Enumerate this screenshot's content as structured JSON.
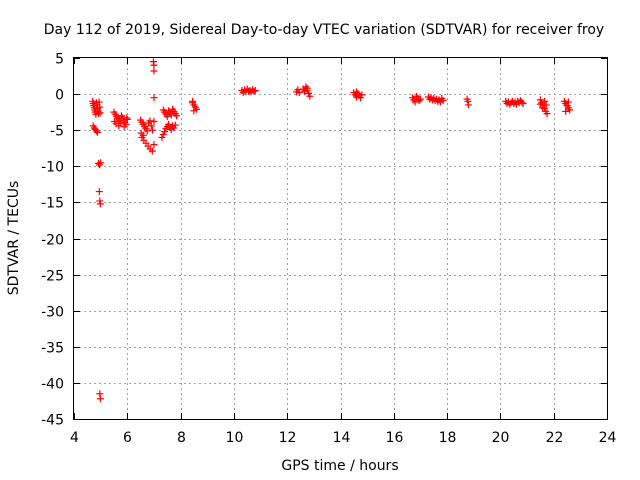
{
  "chart_data": {
    "type": "scatter",
    "title": "Day 112 of 2019, Sidereal Day-to-day VTEC variation (SDTVAR) for receiver froy",
    "xlabel": "GPS time / hours",
    "ylabel": "SDTVAR / TECUs",
    "xlim": [
      4,
      24
    ],
    "ylim": [
      -45,
      5
    ],
    "xticks": [
      "4",
      "6",
      "8",
      "10",
      "12",
      "14",
      "16",
      "18",
      "20",
      "22",
      "24"
    ],
    "yticks": [
      "5",
      "0",
      "-5",
      "-10",
      "-15",
      "-20",
      "-25",
      "-30",
      "-35",
      "-40",
      "-45"
    ],
    "xtick_values": [
      4,
      6,
      8,
      10,
      12,
      14,
      16,
      18,
      20,
      22,
      24
    ],
    "ytick_values": [
      5,
      0,
      -5,
      -10,
      -15,
      -20,
      -25,
      -30,
      -35,
      -40,
      -45
    ],
    "grid": true,
    "marker": "plus",
    "series": [
      {
        "name": "SDTVAR",
        "color": "#ff0000",
        "points": [
          [
            4.7,
            -1.0
          ],
          [
            4.72,
            -1.3
          ],
          [
            4.74,
            -1.6
          ],
          [
            4.76,
            -1.9
          ],
          [
            4.78,
            -2.2
          ],
          [
            4.8,
            -2.5
          ],
          [
            4.82,
            -2.8
          ],
          [
            4.84,
            -1.2
          ],
          [
            4.86,
            -1.5
          ],
          [
            4.88,
            -2.0
          ],
          [
            4.9,
            -2.4
          ],
          [
            4.92,
            -2.7
          ],
          [
            4.94,
            -1.1
          ],
          [
            4.96,
            -1.8
          ],
          [
            4.98,
            -2.6
          ],
          [
            4.72,
            -4.4
          ],
          [
            4.76,
            -4.7
          ],
          [
            4.8,
            -4.9
          ],
          [
            4.84,
            -5.1
          ],
          [
            4.88,
            -5.3
          ],
          [
            4.92,
            -9.6
          ],
          [
            4.96,
            -9.8
          ],
          [
            5.0,
            -9.5
          ],
          [
            4.95,
            -13.5
          ],
          [
            4.97,
            -14.8
          ],
          [
            4.99,
            -15.2
          ],
          [
            4.97,
            -41.5
          ],
          [
            4.99,
            -42.2
          ],
          [
            5.5,
            -2.5
          ],
          [
            5.55,
            -2.8
          ],
          [
            5.6,
            -3.1
          ],
          [
            5.65,
            -3.4
          ],
          [
            5.7,
            -3.7
          ],
          [
            5.75,
            -4.0
          ],
          [
            5.8,
            -3.2
          ],
          [
            5.85,
            -3.6
          ],
          [
            5.9,
            -3.9
          ],
          [
            5.95,
            -4.2
          ],
          [
            6.0,
            -3.5
          ],
          [
            5.52,
            -3.8
          ],
          [
            5.58,
            -4.1
          ],
          [
            5.68,
            -4.4
          ],
          [
            5.78,
            -3.0
          ],
          [
            5.88,
            -4.5
          ],
          [
            5.98,
            -3.3
          ],
          [
            6.5,
            -3.6
          ],
          [
            6.55,
            -3.9
          ],
          [
            6.6,
            -4.2
          ],
          [
            6.65,
            -4.5
          ],
          [
            6.7,
            -4.8
          ],
          [
            6.75,
            -5.1
          ],
          [
            6.8,
            -4.0
          ],
          [
            6.85,
            -3.7
          ],
          [
            6.9,
            -4.4
          ],
          [
            6.95,
            -5.0
          ],
          [
            7.0,
            -3.8
          ],
          [
            6.52,
            -5.4
          ],
          [
            6.6,
            -5.7
          ],
          [
            6.55,
            -6.0
          ],
          [
            6.62,
            -6.4
          ],
          [
            6.7,
            -6.8
          ],
          [
            6.78,
            -7.2
          ],
          [
            6.86,
            -7.6
          ],
          [
            6.94,
            -7.9
          ],
          [
            7.0,
            -7.0
          ],
          [
            6.98,
            4.5
          ],
          [
            7.0,
            4.0
          ],
          [
            7.0,
            3.2
          ],
          [
            7.0,
            -0.5
          ],
          [
            7.3,
            -6.0
          ],
          [
            7.35,
            -5.6
          ],
          [
            7.4,
            -5.2
          ],
          [
            7.45,
            -4.8
          ],
          [
            7.5,
            -4.5
          ],
          [
            7.55,
            -4.2
          ],
          [
            7.6,
            -4.6
          ],
          [
            7.65,
            -4.9
          ],
          [
            7.7,
            -4.4
          ],
          [
            7.75,
            -4.7
          ],
          [
            7.8,
            -4.3
          ],
          [
            7.35,
            -2.2
          ],
          [
            7.4,
            -2.5
          ],
          [
            7.45,
            -2.8
          ],
          [
            7.5,
            -3.1
          ],
          [
            7.55,
            -2.3
          ],
          [
            7.6,
            -2.6
          ],
          [
            7.65,
            -2.9
          ],
          [
            7.7,
            -2.1
          ],
          [
            7.75,
            -2.4
          ],
          [
            7.8,
            -2.7
          ],
          [
            7.85,
            -3.0
          ],
          [
            8.45,
            -1.2
          ],
          [
            8.5,
            -1.5
          ],
          [
            8.55,
            -1.8
          ],
          [
            8.6,
            -2.1
          ],
          [
            8.5,
            -2.3
          ],
          [
            8.45,
            -1.0
          ],
          [
            10.3,
            0.5
          ],
          [
            10.35,
            0.2
          ],
          [
            10.4,
            0.6
          ],
          [
            10.45,
            0.3
          ],
          [
            10.5,
            0.7
          ],
          [
            10.55,
            0.4
          ],
          [
            10.6,
            0.5
          ],
          [
            10.65,
            0.3
          ],
          [
            10.7,
            0.6
          ],
          [
            10.75,
            0.4
          ],
          [
            10.8,
            0.5
          ],
          [
            12.35,
            0.3
          ],
          [
            12.4,
            0.6
          ],
          [
            12.45,
            0.2
          ],
          [
            12.6,
            0.7
          ],
          [
            12.65,
            0.4
          ],
          [
            12.7,
            1.0
          ],
          [
            12.75,
            0.5
          ],
          [
            12.8,
            0.1
          ],
          [
            12.85,
            -0.3
          ],
          [
            12.75,
            0.8
          ],
          [
            14.5,
            0.2
          ],
          [
            14.55,
            -0.1
          ],
          [
            14.6,
            -0.4
          ],
          [
            14.65,
            0.1
          ],
          [
            14.7,
            -0.2
          ],
          [
            14.75,
            -0.5
          ],
          [
            14.8,
            -0.1
          ],
          [
            14.6,
            0.3
          ],
          [
            16.7,
            -0.5
          ],
          [
            16.75,
            -0.8
          ],
          [
            16.8,
            -1.1
          ],
          [
            16.85,
            -0.3
          ],
          [
            16.9,
            -0.6
          ],
          [
            16.95,
            -0.9
          ],
          [
            17.0,
            -0.7
          ],
          [
            17.3,
            -0.4
          ],
          [
            17.35,
            -0.7
          ],
          [
            17.4,
            -0.5
          ],
          [
            17.45,
            -0.8
          ],
          [
            17.5,
            -0.6
          ],
          [
            17.55,
            -0.9
          ],
          [
            17.6,
            -0.7
          ],
          [
            17.65,
            -1.0
          ],
          [
            17.7,
            -0.8
          ],
          [
            17.75,
            -1.1
          ],
          [
            17.8,
            -0.6
          ],
          [
            17.85,
            -0.9
          ],
          [
            18.75,
            -0.7
          ],
          [
            18.78,
            -1.0
          ],
          [
            18.8,
            -1.5
          ],
          [
            20.2,
            -1.0
          ],
          [
            20.25,
            -1.3
          ],
          [
            20.3,
            -1.1
          ],
          [
            20.35,
            -1.4
          ],
          [
            20.4,
            -1.2
          ],
          [
            20.45,
            -1.0
          ],
          [
            20.5,
            -1.3
          ],
          [
            20.55,
            -1.1
          ],
          [
            20.6,
            -1.4
          ],
          [
            20.65,
            -1.0
          ],
          [
            20.7,
            -1.2
          ],
          [
            20.75,
            -0.9
          ],
          [
            20.8,
            -1.1
          ],
          [
            20.85,
            -1.3
          ],
          [
            21.5,
            -0.8
          ],
          [
            21.55,
            -1.2
          ],
          [
            21.6,
            -1.6
          ],
          [
            21.65,
            -2.0
          ],
          [
            21.7,
            -2.4
          ],
          [
            21.75,
            -2.7
          ],
          [
            21.5,
            -1.4
          ],
          [
            21.58,
            -1.9
          ],
          [
            21.66,
            -1.0
          ],
          [
            21.72,
            -1.5
          ],
          [
            22.4,
            -1.0
          ],
          [
            22.45,
            -1.3
          ],
          [
            22.5,
            -1.6
          ],
          [
            22.55,
            -1.9
          ],
          [
            22.6,
            -2.2
          ],
          [
            22.45,
            -2.4
          ],
          [
            22.55,
            -1.1
          ]
        ]
      }
    ]
  }
}
